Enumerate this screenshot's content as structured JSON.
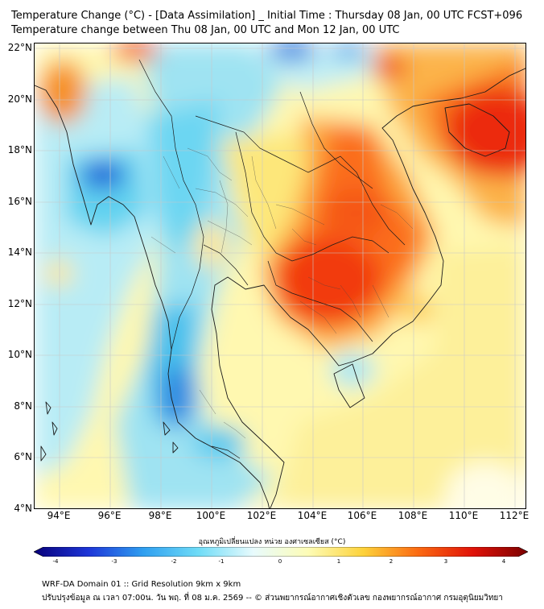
{
  "title_line1": "Temperature Change (°C) - [Data Assimilation] _ Initial Time : Thursday 08 Jan, 00 UTC FCST+096",
  "title_line2": "Temperature change between Thu 08 Jan, 00 UTC and Mon 12 Jan, 00 UTC",
  "lat_labels": [
    "22°N",
    "20°N",
    "18°N",
    "16°N",
    "14°N",
    "12°N",
    "10°N",
    "8°N",
    "6°N",
    "4°N"
  ],
  "lon_labels": [
    "94°E",
    "96°E",
    "98°E",
    "100°E",
    "102°E",
    "104°E",
    "106°E",
    "108°E",
    "110°E",
    "112°E"
  ],
  "colorbar": {
    "title": "อุณหภูมิเปลี่ยนแปลง หน่วย องศาเซลเซียส (°C)",
    "ticks": [
      "-4",
      "-3",
      "-2",
      "-1",
      "0",
      "1",
      "2",
      "3",
      "4"
    ],
    "colors": [
      "#08007a",
      "#1d36d8",
      "#2f9ff0",
      "#6fdcf7",
      "#e8fbfd",
      "#fdfcb6",
      "#fdd23a",
      "#fb6a12",
      "#e01208",
      "#7a0000"
    ]
  },
  "footer_line1": "WRF-DA Domain 01 :: Grid Resolution 9km x 9km",
  "footer_line2": "ปรับปรุงข้อมูล ณ เวลา 07:00น. วัน พฤ. ที่ 08 ม.ค. 2569 -- © ส่วนพยากรณ์อากาศเชิงตัวเลข กองพยากรณ์อากาศ กรมอุตุนิยมวิทยา"
}
